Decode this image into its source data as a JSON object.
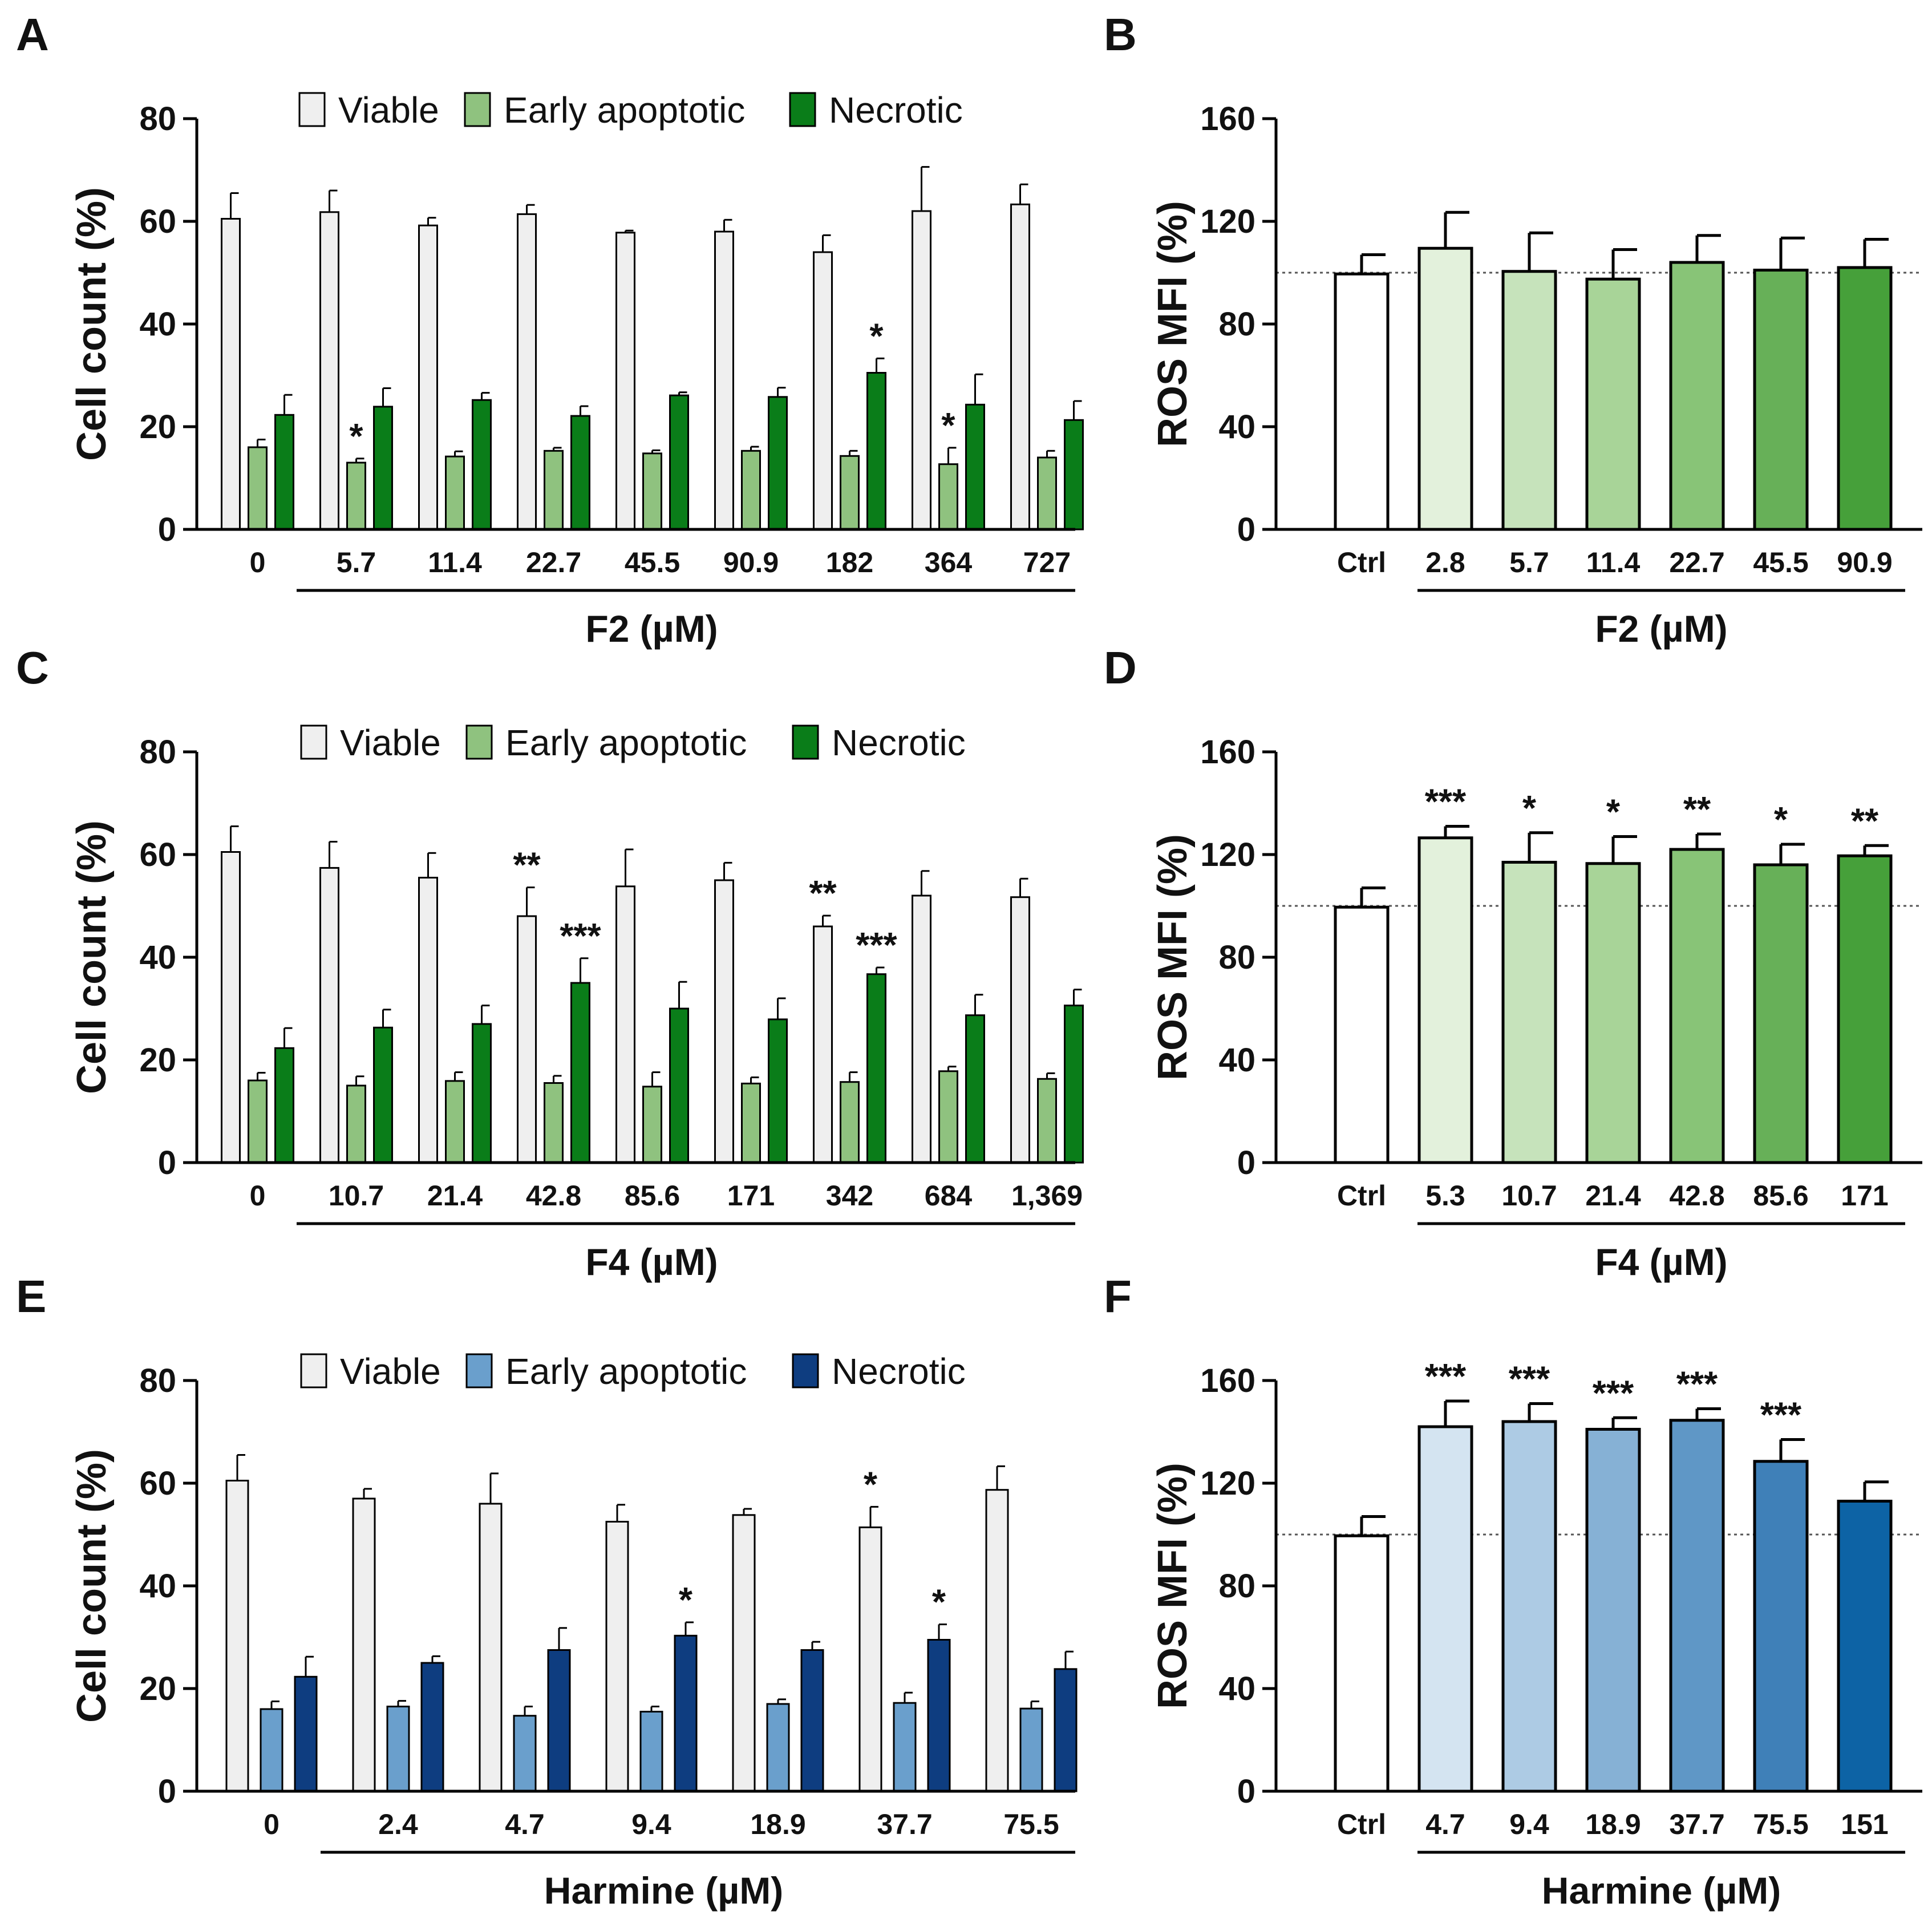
{
  "figure": {
    "panel_letters": [
      "A",
      "B",
      "C",
      "D",
      "E",
      "F"
    ]
  },
  "chart_data": [
    {
      "panel": "A",
      "type": "bar",
      "title": "",
      "ylabel": "Cell count (%)",
      "xlabel": "F2 (µM)",
      "ylim": [
        0,
        80
      ],
      "yticks": [
        0,
        20,
        40,
        60,
        80
      ],
      "categories": [
        "0",
        "5.7",
        "11.4",
        "22.7",
        "45.5",
        "90.9",
        "182",
        "364",
        "727"
      ],
      "legend": [
        "Viable",
        "Early apoptotic",
        "Necrotic"
      ],
      "colors": [
        "#efefef",
        "#8fc27f",
        "#0a7d19"
      ],
      "series": [
        {
          "name": "Viable",
          "values": [
            60.5,
            61.8,
            59.2,
            61.4,
            57.8,
            58.0,
            54.0,
            62.0,
            63.3
          ],
          "errors": [
            5.0,
            4.2,
            1.5,
            1.8,
            0.4,
            2.3,
            3.3,
            8.6,
            3.9
          ]
        },
        {
          "name": "Early apoptotic",
          "values": [
            16.0,
            13.0,
            14.2,
            15.3,
            14.8,
            15.3,
            14.3,
            12.7,
            14.0
          ],
          "errors": [
            1.5,
            0.8,
            1.0,
            0.6,
            0.6,
            0.8,
            1.0,
            3.2,
            1.3
          ]
        },
        {
          "name": "Necrotic",
          "values": [
            22.3,
            23.9,
            25.2,
            22.1,
            26.1,
            25.8,
            30.5,
            24.3,
            21.3
          ],
          "errors": [
            3.9,
            3.6,
            1.4,
            1.9,
            0.6,
            1.8,
            2.8,
            5.9,
            3.7
          ]
        }
      ],
      "significance": [
        {
          "category": 1,
          "series": 1,
          "label": "*"
        },
        {
          "category": 6,
          "series": 2,
          "label": "*"
        },
        {
          "category": 7,
          "series": 1,
          "label": "*"
        }
      ]
    },
    {
      "panel": "B",
      "type": "bar",
      "ylabel": "ROS MFI (%)",
      "xlabel": "F2 (µM)",
      "ylim": [
        0,
        160
      ],
      "yticks": [
        0,
        40,
        80,
        120,
        160
      ],
      "reference_line": 100,
      "categories": [
        "Ctrl",
        "2.8",
        "5.7",
        "11.4",
        "22.7",
        "45.5",
        "90.9"
      ],
      "colors": [
        "#ffffff",
        "#e3f1dc",
        "#c6e3bb",
        "#a8d498",
        "#88c477",
        "#67b058",
        "#46a03a"
      ],
      "values": [
        99.5,
        109.5,
        100.5,
        97.5,
        104.0,
        101.0,
        102.0
      ],
      "errors": [
        7.5,
        14.0,
        15.0,
        11.5,
        10.5,
        12.5,
        11.0
      ],
      "significance": []
    },
    {
      "panel": "C",
      "type": "bar",
      "ylabel": "Cell count (%)",
      "xlabel": "F4 (µM)",
      "ylim": [
        0,
        80
      ],
      "yticks": [
        0,
        20,
        40,
        60,
        80
      ],
      "categories": [
        "0",
        "10.7",
        "21.4",
        "42.8",
        "85.6",
        "171",
        "342",
        "684",
        "1,369"
      ],
      "legend": [
        "Viable",
        "Early apoptotic",
        "Necrotic"
      ],
      "colors": [
        "#efefef",
        "#8fc27f",
        "#0a7d19"
      ],
      "series": [
        {
          "name": "Viable",
          "values": [
            60.5,
            57.4,
            55.5,
            48.0,
            53.8,
            55.0,
            46.0,
            52.0,
            51.7
          ],
          "errors": [
            5.0,
            5.1,
            4.8,
            5.6,
            7.2,
            3.4,
            2.1,
            4.8,
            3.6
          ]
        },
        {
          "name": "Early apoptotic",
          "values": [
            16.0,
            15.0,
            15.9,
            15.5,
            14.8,
            15.4,
            15.7,
            17.8,
            16.3
          ],
          "errors": [
            1.5,
            1.8,
            1.7,
            1.4,
            2.8,
            1.2,
            1.9,
            0.9,
            1.1
          ]
        },
        {
          "name": "Necrotic",
          "values": [
            22.3,
            26.3,
            27.0,
            35.0,
            30.0,
            27.9,
            36.7,
            28.7,
            30.6
          ],
          "errors": [
            3.9,
            3.5,
            3.6,
            4.8,
            5.2,
            4.1,
            1.3,
            4.0,
            3.1
          ]
        }
      ],
      "significance": [
        {
          "category": 3,
          "series": 0,
          "label": "**"
        },
        {
          "category": 3,
          "series": 2,
          "label": "***"
        },
        {
          "category": 6,
          "series": 0,
          "label": "**"
        },
        {
          "category": 6,
          "series": 2,
          "label": "***"
        }
      ]
    },
    {
      "panel": "D",
      "type": "bar",
      "ylabel": "ROS MFI (%)",
      "xlabel": "F4 (µM)",
      "ylim": [
        0,
        160
      ],
      "yticks": [
        0,
        40,
        80,
        120,
        160
      ],
      "reference_line": 100,
      "categories": [
        "Ctrl",
        "5.3",
        "10.7",
        "21.4",
        "42.8",
        "85.6",
        "171"
      ],
      "colors": [
        "#ffffff",
        "#e3f1dc",
        "#c6e3bb",
        "#a8d498",
        "#88c477",
        "#67b058",
        "#46a03a"
      ],
      "values": [
        99.5,
        126.5,
        117.0,
        116.5,
        122.0,
        116.0,
        119.5
      ],
      "errors": [
        7.5,
        4.5,
        11.5,
        10.5,
        6.0,
        8.0,
        4.0
      ],
      "significance": [
        "",
        "***",
        "*",
        "*",
        "**",
        "*",
        "**"
      ]
    },
    {
      "panel": "E",
      "type": "bar",
      "ylabel": "Cell count (%)",
      "xlabel": "Harmine (µM)",
      "ylim": [
        0,
        80
      ],
      "yticks": [
        0,
        20,
        40,
        60,
        80
      ],
      "categories": [
        "0",
        "2.4",
        "4.7",
        "9.4",
        "18.9",
        "37.7",
        "75.5"
      ],
      "legend": [
        "Viable",
        "Early apoptotic",
        "Necrotic"
      ],
      "colors": [
        "#efefef",
        "#6a9fcc",
        "#0e3d80"
      ],
      "series": [
        {
          "name": "Viable",
          "values": [
            60.5,
            57.0,
            56.0,
            52.5,
            53.8,
            51.4,
            58.7
          ],
          "errors": [
            5.0,
            1.9,
            5.9,
            3.3,
            1.2,
            4.0,
            4.6
          ]
        },
        {
          "name": "Early apoptotic",
          "values": [
            16.0,
            16.5,
            14.7,
            15.5,
            17.0,
            17.2,
            16.1
          ],
          "errors": [
            1.5,
            1.1,
            1.8,
            1.0,
            0.9,
            2.0,
            1.4
          ]
        },
        {
          "name": "Necrotic",
          "values": [
            22.3,
            25.0,
            27.5,
            30.3,
            27.5,
            29.5,
            23.8
          ],
          "errors": [
            3.9,
            1.3,
            4.3,
            2.6,
            1.6,
            3.0,
            3.4
          ]
        }
      ],
      "significance": [
        {
          "category": 3,
          "series": 2,
          "label": "*"
        },
        {
          "category": 5,
          "series": 0,
          "label": "*"
        },
        {
          "category": 5,
          "series": 2,
          "label": "*"
        }
      ]
    },
    {
      "panel": "F",
      "type": "bar",
      "ylabel": "ROS MFI (%)",
      "xlabel": "Harmine (µM)",
      "ylim": [
        0,
        160
      ],
      "yticks": [
        0,
        40,
        80,
        120,
        160
      ],
      "reference_line": 100,
      "categories": [
        "Ctrl",
        "4.7",
        "9.4",
        "18.9",
        "37.7",
        "75.5",
        "151"
      ],
      "colors": [
        "#ffffff",
        "#d4e4f1",
        "#adcbe4",
        "#86b1d5",
        "#5f97c6",
        "#3f80b8",
        "#0d63a5"
      ],
      "values": [
        99.5,
        142.0,
        144.0,
        141.0,
        144.5,
        128.5,
        113.0
      ],
      "errors": [
        7.5,
        10.0,
        7.0,
        4.5,
        4.5,
        8.5,
        7.5
      ],
      "significance": [
        "",
        "***",
        "***",
        "***",
        "***",
        "***",
        ""
      ]
    }
  ]
}
